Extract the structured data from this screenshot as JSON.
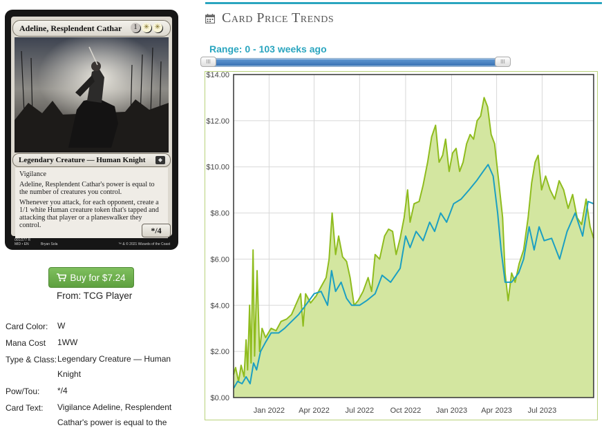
{
  "card": {
    "name": "Adeline, Resplendent Cathar",
    "mana_cost": [
      "1",
      "W",
      "W"
    ],
    "type_line": "Legendary Creature — Human Knight",
    "set_symbol": "MID",
    "rules_text": [
      "Vigilance",
      "Adeline, Resplendent Cathar's power is equal to the number of creatures you control.",
      "Whenever you attack, for each opponent, create a 1/1 white Human creature token that's tapped and attacking that player or a planeswalker they control."
    ],
    "pt": "*/4",
    "collector_number": "001/277 R",
    "set_line": "MID • EN",
    "artist": "Bryan Sola",
    "copyright": "™ & © 2021 Wizards of the Coast"
  },
  "buy": {
    "label": "Buy for $7.24",
    "from": "From: TCG Player"
  },
  "details": [
    {
      "label": "Card Color:",
      "value": "W"
    },
    {
      "label": "Mana Cost",
      "value": "1WW"
    },
    {
      "label": "Type & Class:",
      "value": "Legendary Creature — Human Knight"
    },
    {
      "label": "Pow/Tou:",
      "value": "*/4"
    },
    {
      "label": "Card Text:",
      "value": "Vigilance Adeline, Resplendent Cathar's power is equal to the"
    }
  ],
  "trends": {
    "title": "Card Price Trends",
    "range_label": "Range: 0 - 103 weeks ago",
    "range_weeks": [
      0,
      103
    ]
  },
  "colors": {
    "accent": "#2aa5bf",
    "buy_green": "#6aad4a",
    "series_market": "#8fbc1e",
    "series_low": "#1b9fc2",
    "area_fill": "#d3e6a0"
  },
  "chart_data": {
    "type": "line",
    "title": "",
    "xlabel": "",
    "ylabel": "",
    "ylim": [
      0,
      14
    ],
    "y_ticks": [
      "$0.00",
      "$2.00",
      "$4.00",
      "$6.00",
      "$8.00",
      "$10.00",
      "$12.00",
      "$14.00"
    ],
    "x_ticks": [
      "Jan 2022",
      "Apr 2022",
      "Jul 2022",
      "Oct 2022",
      "Jan 2023",
      "Apr 2023",
      "Jul 2023"
    ],
    "x_range": [
      "2021-10-22",
      "2023-10-12"
    ],
    "grid": true,
    "series": [
      {
        "name": "",
        "color": "#8fbc1e",
        "filled": true,
        "points": [
          [
            "2021-10-22",
            1.0
          ],
          [
            "2021-10-26",
            1.3
          ],
          [
            "2021-11-01",
            0.7
          ],
          [
            "2021-11-06",
            1.4
          ],
          [
            "2021-11-12",
            0.9
          ],
          [
            "2021-11-16",
            2.5
          ],
          [
            "2021-11-19",
            1.2
          ],
          [
            "2021-11-23",
            4.0
          ],
          [
            "2021-11-26",
            1.5
          ],
          [
            "2021-11-30",
            6.4
          ],
          [
            "2021-12-03",
            1.8
          ],
          [
            "2021-12-08",
            5.5
          ],
          [
            "2021-12-13",
            2.0
          ],
          [
            "2021-12-18",
            3.0
          ],
          [
            "2021-12-25",
            2.6
          ],
          [
            "2022-01-05",
            3.0
          ],
          [
            "2022-01-15",
            2.9
          ],
          [
            "2022-01-25",
            3.3
          ],
          [
            "2022-02-05",
            3.4
          ],
          [
            "2022-02-15",
            3.6
          ],
          [
            "2022-02-25",
            4.1
          ],
          [
            "2022-03-05",
            4.5
          ],
          [
            "2022-03-10",
            3.1
          ],
          [
            "2022-03-15",
            4.5
          ],
          [
            "2022-03-25",
            4.1
          ],
          [
            "2022-04-05",
            4.4
          ],
          [
            "2022-04-15",
            4.8
          ],
          [
            "2022-04-25",
            5.2
          ],
          [
            "2022-05-01",
            6.0
          ],
          [
            "2022-05-07",
            8.0
          ],
          [
            "2022-05-14",
            6.2
          ],
          [
            "2022-05-20",
            7.0
          ],
          [
            "2022-05-28",
            6.1
          ],
          [
            "2022-06-05",
            5.9
          ],
          [
            "2022-06-12",
            5.2
          ],
          [
            "2022-06-20",
            4.0
          ],
          [
            "2022-06-28",
            4.2
          ],
          [
            "2022-07-08",
            4.6
          ],
          [
            "2022-07-18",
            5.2
          ],
          [
            "2022-07-25",
            4.6
          ],
          [
            "2022-08-01",
            6.2
          ],
          [
            "2022-08-10",
            6.0
          ],
          [
            "2022-08-20",
            7.0
          ],
          [
            "2022-08-28",
            7.3
          ],
          [
            "2022-09-05",
            7.2
          ],
          [
            "2022-09-12",
            6.2
          ],
          [
            "2022-09-20",
            6.9
          ],
          [
            "2022-09-28",
            7.8
          ],
          [
            "2022-10-05",
            9.0
          ],
          [
            "2022-10-10",
            7.6
          ],
          [
            "2022-10-18",
            8.4
          ],
          [
            "2022-10-28",
            8.5
          ],
          [
            "2022-11-05",
            9.2
          ],
          [
            "2022-11-14",
            10.2
          ],
          [
            "2022-11-22",
            11.3
          ],
          [
            "2022-11-30",
            11.8
          ],
          [
            "2022-12-07",
            10.2
          ],
          [
            "2022-12-14",
            10.5
          ],
          [
            "2022-12-20",
            11.2
          ],
          [
            "2022-12-27",
            9.8
          ],
          [
            "2023-01-03",
            10.6
          ],
          [
            "2023-01-10",
            10.8
          ],
          [
            "2023-01-17",
            9.8
          ],
          [
            "2023-01-24",
            10.2
          ],
          [
            "2023-01-31",
            11.0
          ],
          [
            "2023-02-07",
            11.4
          ],
          [
            "2023-02-14",
            11.2
          ],
          [
            "2023-02-21",
            12.0
          ],
          [
            "2023-02-28",
            12.2
          ],
          [
            "2023-03-07",
            13.0
          ],
          [
            "2023-03-14",
            12.6
          ],
          [
            "2023-03-21",
            11.4
          ],
          [
            "2023-03-28",
            11.0
          ],
          [
            "2023-04-03",
            9.8
          ],
          [
            "2023-04-08",
            8.8
          ],
          [
            "2023-04-13",
            7.8
          ],
          [
            "2023-04-18",
            5.4
          ],
          [
            "2023-04-24",
            4.2
          ],
          [
            "2023-05-01",
            5.4
          ],
          [
            "2023-05-08",
            5.0
          ],
          [
            "2023-05-16",
            5.8
          ],
          [
            "2023-05-25",
            6.4
          ],
          [
            "2023-06-03",
            7.8
          ],
          [
            "2023-06-10",
            9.3
          ],
          [
            "2023-06-17",
            10.2
          ],
          [
            "2023-06-23",
            10.5
          ],
          [
            "2023-06-30",
            9.0
          ],
          [
            "2023-07-08",
            9.6
          ],
          [
            "2023-07-17",
            9.0
          ],
          [
            "2023-07-26",
            8.6
          ],
          [
            "2023-08-04",
            9.4
          ],
          [
            "2023-08-13",
            9.0
          ],
          [
            "2023-08-22",
            8.2
          ],
          [
            "2023-08-31",
            8.8
          ],
          [
            "2023-09-09",
            7.8
          ],
          [
            "2023-09-18",
            7.5
          ],
          [
            "2023-09-27",
            8.6
          ],
          [
            "2023-10-05",
            7.4
          ],
          [
            "2023-10-12",
            6.9
          ]
        ]
      },
      {
        "name": "",
        "color": "#1b9fc2",
        "filled": false,
        "points": [
          [
            "2021-10-22",
            0.4
          ],
          [
            "2021-10-30",
            0.7
          ],
          [
            "2021-11-08",
            0.6
          ],
          [
            "2021-11-16",
            0.9
          ],
          [
            "2021-11-24",
            0.6
          ],
          [
            "2021-12-01",
            1.5
          ],
          [
            "2021-12-07",
            1.2
          ],
          [
            "2021-12-15",
            2.0
          ],
          [
            "2021-12-25",
            2.4
          ],
          [
            "2022-01-05",
            2.8
          ],
          [
            "2022-01-20",
            2.8
          ],
          [
            "2022-02-01",
            3.0
          ],
          [
            "2022-02-15",
            3.3
          ],
          [
            "2022-03-01",
            3.6
          ],
          [
            "2022-03-15",
            4.0
          ],
          [
            "2022-04-01",
            4.5
          ],
          [
            "2022-04-15",
            4.6
          ],
          [
            "2022-04-28",
            4.0
          ],
          [
            "2022-05-06",
            5.5
          ],
          [
            "2022-05-14",
            4.6
          ],
          [
            "2022-05-25",
            5.0
          ],
          [
            "2022-06-05",
            4.3
          ],
          [
            "2022-06-15",
            4.0
          ],
          [
            "2022-07-01",
            4.0
          ],
          [
            "2022-07-15",
            4.2
          ],
          [
            "2022-08-01",
            4.5
          ],
          [
            "2022-08-15",
            5.3
          ],
          [
            "2022-09-01",
            5.0
          ],
          [
            "2022-09-20",
            5.6
          ],
          [
            "2022-10-01",
            7.0
          ],
          [
            "2022-10-10",
            6.5
          ],
          [
            "2022-10-22",
            7.2
          ],
          [
            "2022-11-05",
            6.8
          ],
          [
            "2022-11-18",
            7.6
          ],
          [
            "2022-11-28",
            7.2
          ],
          [
            "2022-12-10",
            8.0
          ],
          [
            "2022-12-22",
            7.6
          ],
          [
            "2023-01-05",
            8.4
          ],
          [
            "2023-01-20",
            8.6
          ],
          [
            "2023-02-05",
            9.0
          ],
          [
            "2023-02-20",
            9.4
          ],
          [
            "2023-03-05",
            9.8
          ],
          [
            "2023-03-15",
            10.1
          ],
          [
            "2023-03-25",
            9.6
          ],
          [
            "2023-04-03",
            8.0
          ],
          [
            "2023-04-10",
            6.4
          ],
          [
            "2023-04-18",
            5.0
          ],
          [
            "2023-05-01",
            5.0
          ],
          [
            "2023-05-15",
            5.4
          ],
          [
            "2023-05-25",
            6.0
          ],
          [
            "2023-06-05",
            7.4
          ],
          [
            "2023-06-15",
            6.4
          ],
          [
            "2023-06-25",
            7.4
          ],
          [
            "2023-07-05",
            6.8
          ],
          [
            "2023-07-20",
            6.9
          ],
          [
            "2023-08-05",
            6.0
          ],
          [
            "2023-08-20",
            7.2
          ],
          [
            "2023-09-05",
            8.0
          ],
          [
            "2023-09-20",
            7.0
          ],
          [
            "2023-10-01",
            8.5
          ],
          [
            "2023-10-12",
            8.4
          ]
        ]
      }
    ]
  }
}
